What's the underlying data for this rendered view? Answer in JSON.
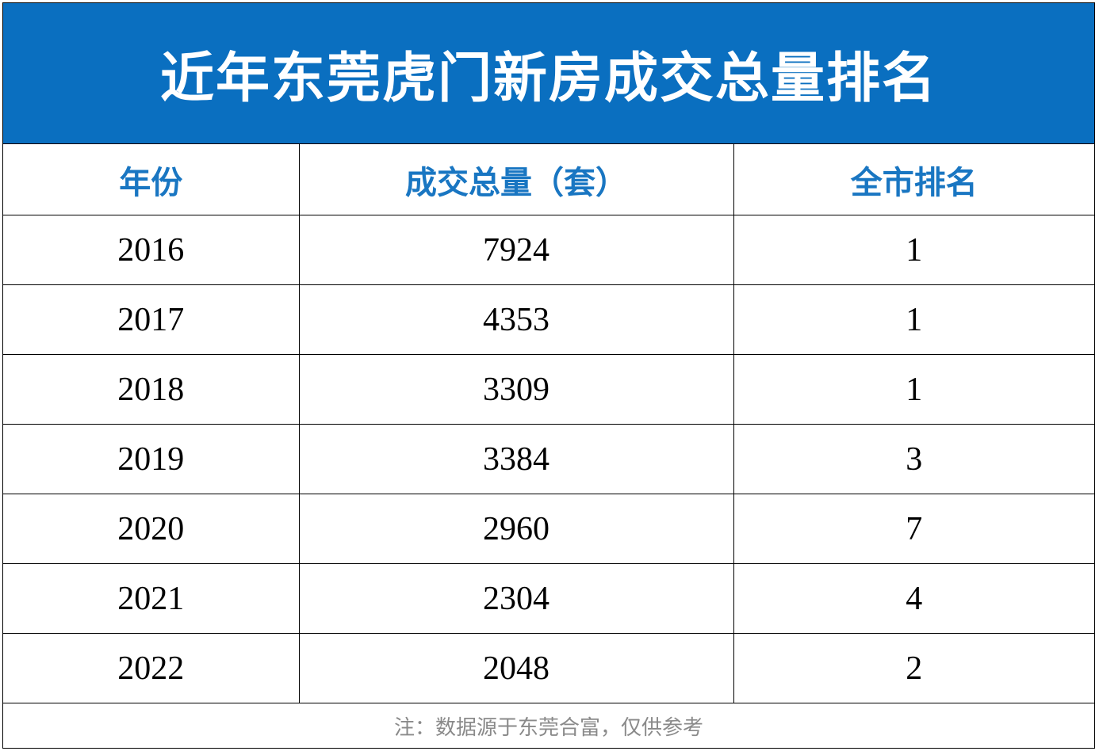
{
  "title": "近年东莞虎门新房成交总量排名",
  "table": {
    "headers": [
      "年份",
      "成交总量（套）",
      "全市排名"
    ],
    "rows": [
      [
        "2016",
        "7924",
        "1"
      ],
      [
        "2017",
        "4353",
        "1"
      ],
      [
        "2018",
        "3309",
        "1"
      ],
      [
        "2019",
        "3384",
        "3"
      ],
      [
        "2020",
        "2960",
        "7"
      ],
      [
        "2021",
        "2304",
        "4"
      ],
      [
        "2022",
        "2048",
        "2"
      ]
    ]
  },
  "note": "注：数据源于东莞合富，仅供参考",
  "colors": {
    "title_bg": "#0a6fc0",
    "header_text": "#1976c2",
    "note_text": "#8a8a8a"
  }
}
